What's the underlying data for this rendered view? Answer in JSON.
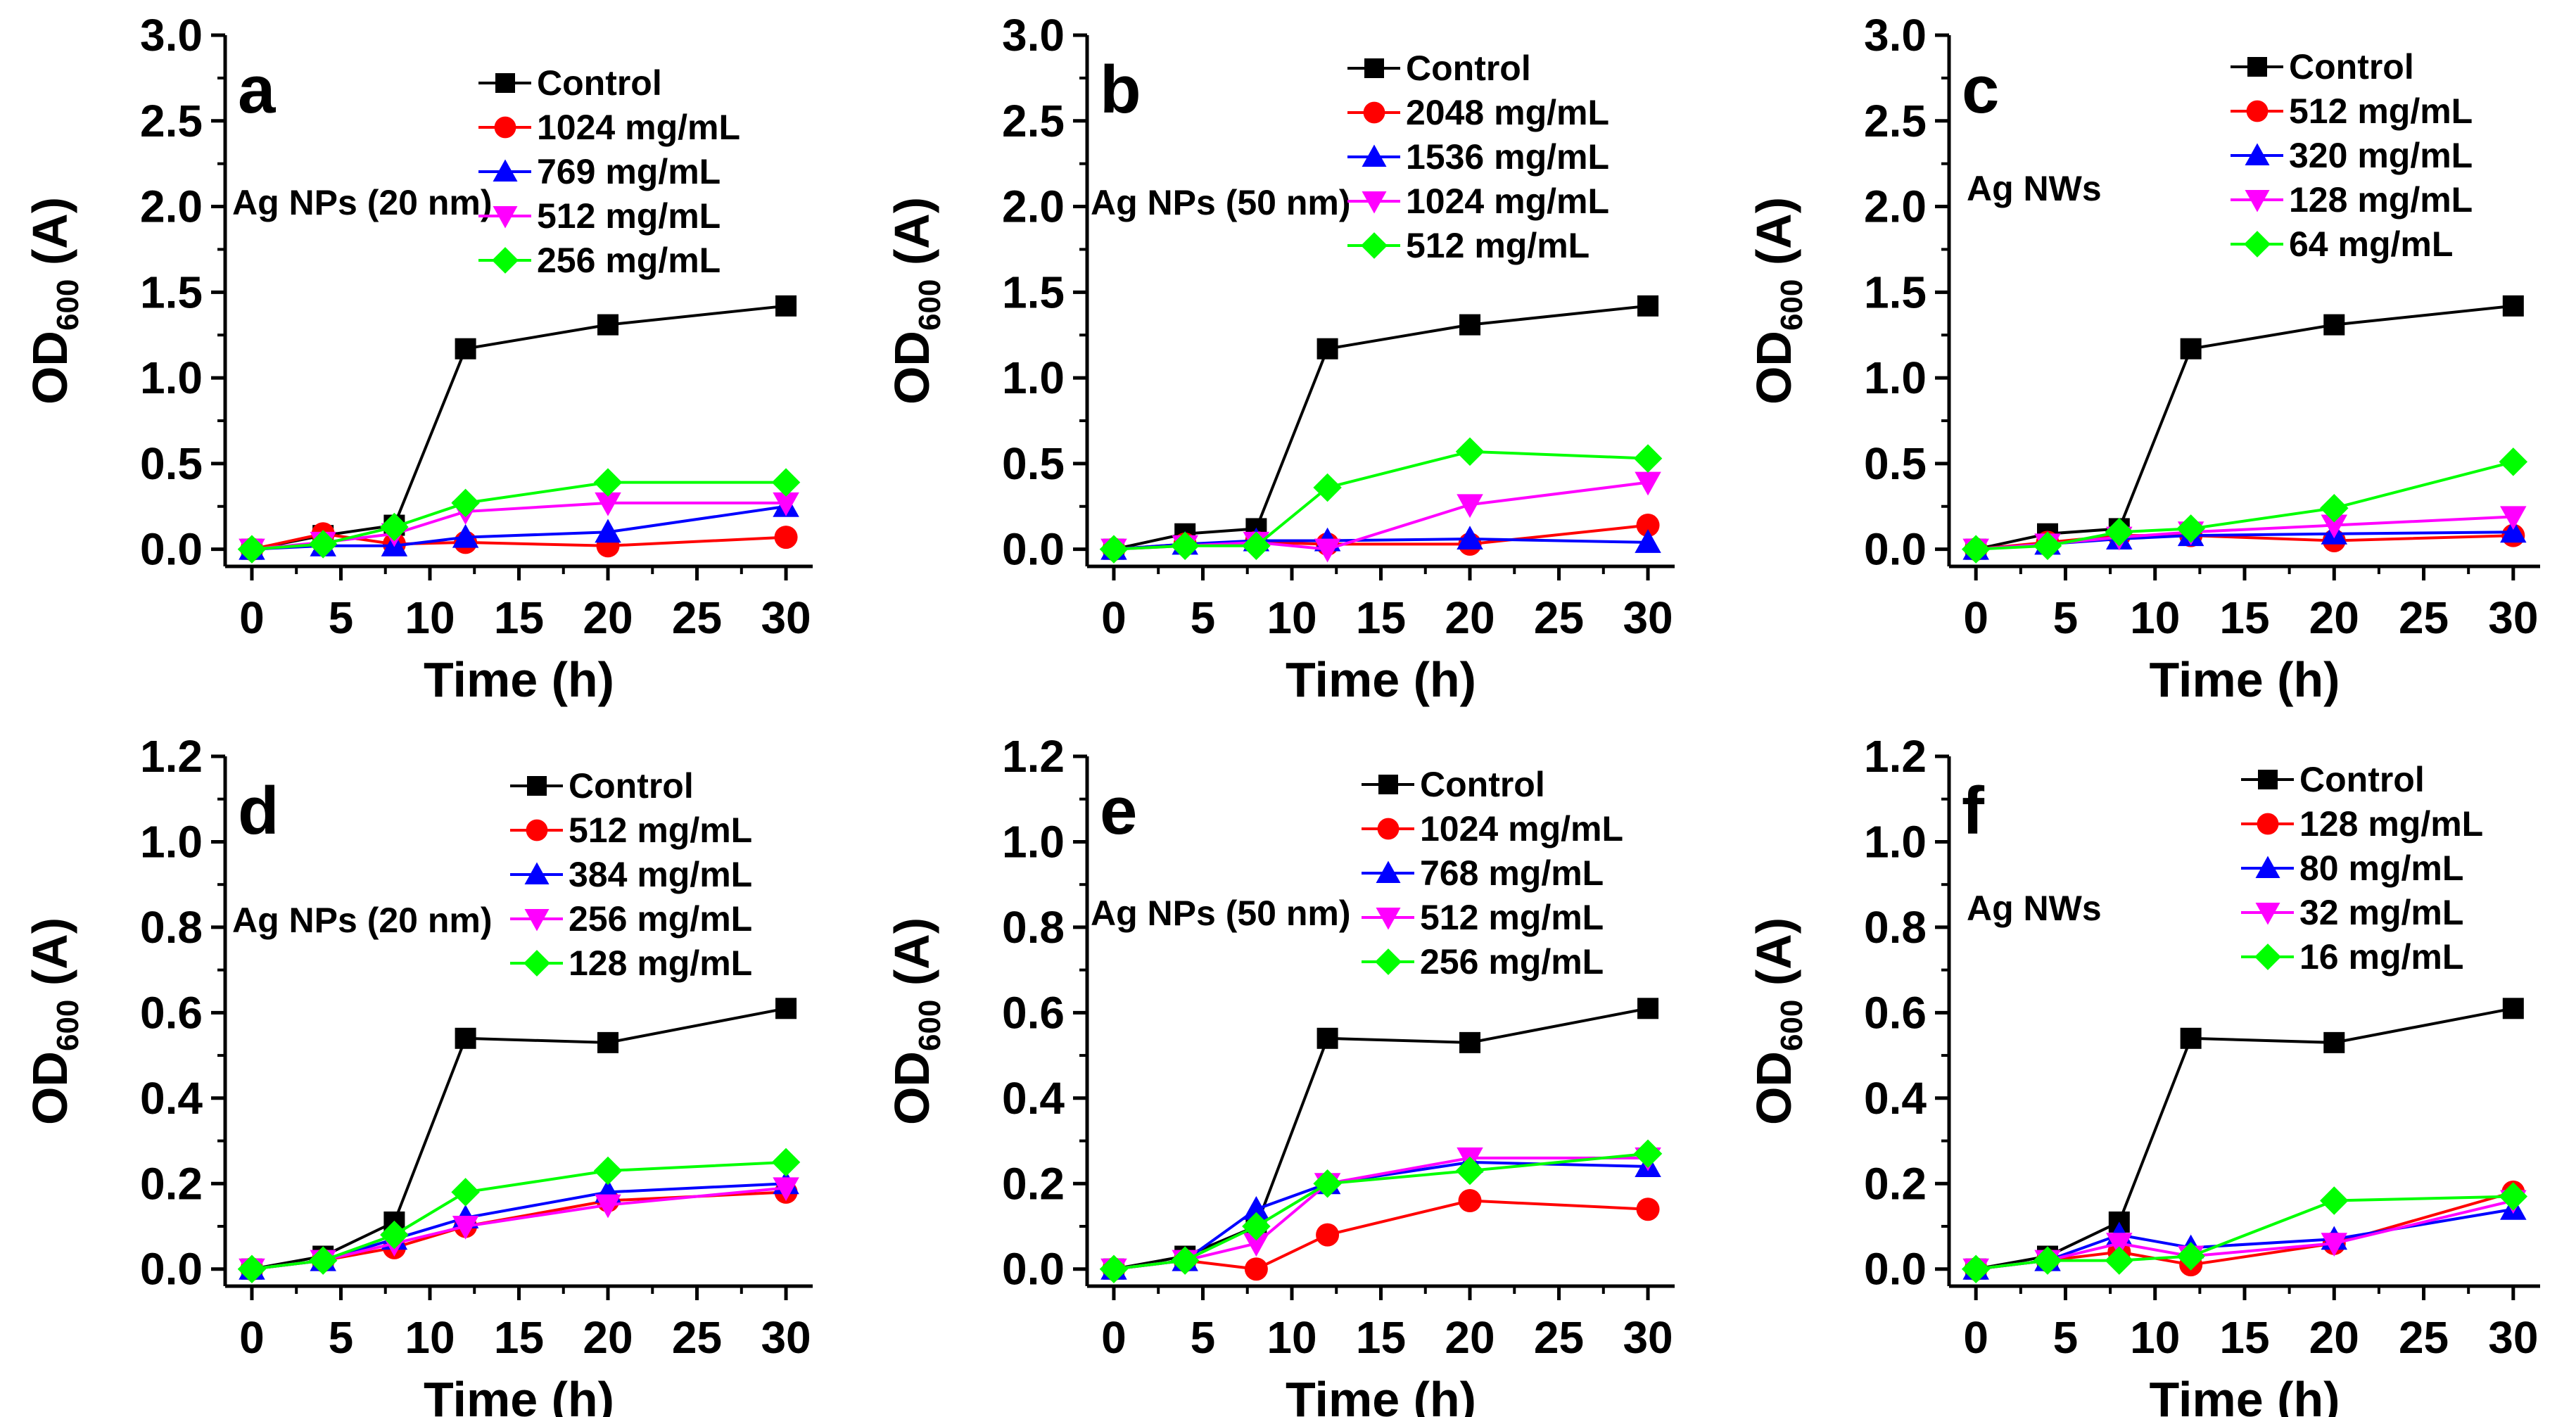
{
  "figure": {
    "description_shown": false
  },
  "chart_data": [
    {
      "type": "line",
      "panel_label": "a",
      "annotation": "Ag NPs (20 nm)",
      "xlabel": "Time (h)",
      "ylabel_main": "OD",
      "ylabel_sub": "600",
      "ylabel_suffix": " (A)",
      "xlim": [
        -1.5,
        31.5
      ],
      "ylim": [
        -0.1,
        3.0
      ],
      "x_ticks": [
        0,
        5,
        10,
        15,
        20,
        25,
        30
      ],
      "y_ticks": [
        0.0,
        0.5,
        1.0,
        1.5,
        2.0,
        2.5,
        3.0
      ],
      "y_tick_labels": [
        "0.0",
        "0.5",
        "1.0",
        "1.5",
        "2.0",
        "2.5",
        "3.0"
      ],
      "x": [
        0,
        4,
        8,
        12,
        20,
        30
      ],
      "legend_position": "top-right",
      "series": [
        {
          "name": "Control",
          "marker": "square",
          "color": "#000000",
          "values": [
            0.0,
            0.08,
            0.14,
            1.17,
            1.31,
            1.42
          ]
        },
        {
          "name": "1024 mg/mL",
          "marker": "circle",
          "color": "#ff0000",
          "values": [
            0.0,
            0.09,
            0.03,
            0.04,
            0.02,
            0.07
          ]
        },
        {
          "name": "769 mg/mL",
          "marker": "triangle-up",
          "color": "#0000ff",
          "values": [
            0.0,
            0.02,
            0.02,
            0.07,
            0.1,
            0.25
          ]
        },
        {
          "name": "512 mg/mL",
          "marker": "triangle-down",
          "color": "#ff00ff",
          "values": [
            0.0,
            0.04,
            0.09,
            0.22,
            0.27,
            0.27
          ]
        },
        {
          "name": "256 mg/mL",
          "marker": "diamond",
          "color": "#00ff00",
          "values": [
            0.0,
            0.03,
            0.13,
            0.27,
            0.39,
            0.39
          ]
        }
      ]
    },
    {
      "type": "line",
      "panel_label": "b",
      "annotation": "Ag NPs (50 nm)",
      "xlabel": "Time (h)",
      "ylabel_main": "OD",
      "ylabel_sub": "600",
      "ylabel_suffix": " (A)",
      "xlim": [
        -1.5,
        31.5
      ],
      "ylim": [
        -0.1,
        3.0
      ],
      "x_ticks": [
        0,
        5,
        10,
        15,
        20,
        25,
        30
      ],
      "y_ticks": [
        0.0,
        0.5,
        1.0,
        1.5,
        2.0,
        2.5,
        3.0
      ],
      "y_tick_labels": [
        "0.0",
        "0.5",
        "1.0",
        "1.5",
        "2.0",
        "2.5",
        "3.0"
      ],
      "x": [
        0,
        4,
        8,
        12,
        20,
        30
      ],
      "legend_position": "top-right",
      "series": [
        {
          "name": "Control",
          "marker": "square",
          "color": "#000000",
          "values": [
            0.0,
            0.09,
            0.12,
            1.17,
            1.31,
            1.42
          ]
        },
        {
          "name": "2048 mg/mL",
          "marker": "circle",
          "color": "#ff0000",
          "values": [
            0.0,
            0.03,
            0.04,
            0.03,
            0.03,
            0.14
          ]
        },
        {
          "name": "1536 mg/mL",
          "marker": "triangle-up",
          "color": "#0000ff",
          "values": [
            0.0,
            0.03,
            0.05,
            0.05,
            0.06,
            0.04
          ]
        },
        {
          "name": "1024 mg/mL",
          "marker": "triangle-down",
          "color": "#ff00ff",
          "values": [
            0.0,
            0.02,
            0.04,
            0.0,
            0.26,
            0.39
          ]
        },
        {
          "name": "512  mg/mL",
          "marker": "diamond",
          "color": "#00ff00",
          "values": [
            0.0,
            0.02,
            0.02,
            0.36,
            0.57,
            0.53
          ]
        }
      ]
    },
    {
      "type": "line",
      "panel_label": "c",
      "annotation": "Ag NWs",
      "xlabel": "Time (h)",
      "ylabel_main": "OD",
      "ylabel_sub": "600",
      "ylabel_suffix": " (A)",
      "xlim": [
        -1.5,
        31.5
      ],
      "ylim": [
        -0.1,
        3.0
      ],
      "x_ticks": [
        0,
        5,
        10,
        15,
        20,
        25,
        30
      ],
      "y_ticks": [
        0.0,
        0.5,
        1.0,
        1.5,
        2.0,
        2.5,
        3.0
      ],
      "y_tick_labels": [
        "0.0",
        "0.5",
        "1.0",
        "1.5",
        "2.0",
        "2.5",
        "3.0"
      ],
      "x": [
        0,
        4,
        8,
        12,
        20,
        30
      ],
      "legend_position": "top-right",
      "series": [
        {
          "name": "Control",
          "marker": "square",
          "color": "#000000",
          "values": [
            0.0,
            0.09,
            0.12,
            1.17,
            1.31,
            1.42
          ]
        },
        {
          "name": "512 mg/mL",
          "marker": "circle",
          "color": "#ff0000",
          "values": [
            0.0,
            0.04,
            0.08,
            0.08,
            0.05,
            0.08
          ]
        },
        {
          "name": "320 mg/mL",
          "marker": "triangle-up",
          "color": "#0000ff",
          "values": [
            0.0,
            0.03,
            0.06,
            0.08,
            0.09,
            0.1
          ]
        },
        {
          "name": "128 mg/mL",
          "marker": "triangle-down",
          "color": "#ff00ff",
          "values": [
            0.0,
            0.03,
            0.07,
            0.1,
            0.14,
            0.19
          ]
        },
        {
          "name": "64  mg/mL",
          "marker": "diamond",
          "color": "#00ff00",
          "values": [
            0.0,
            0.02,
            0.1,
            0.12,
            0.24,
            0.51
          ]
        }
      ]
    },
    {
      "type": "line",
      "panel_label": "d",
      "annotation": "Ag NPs (20 nm)",
      "xlabel": "Time (h)",
      "ylabel_main": "OD",
      "ylabel_sub": "600",
      "ylabel_suffix": " (A)",
      "xlim": [
        -1.5,
        31.5
      ],
      "ylim": [
        -0.04,
        1.2
      ],
      "x_ticks": [
        0,
        5,
        10,
        15,
        20,
        25,
        30
      ],
      "y_ticks": [
        0.0,
        0.2,
        0.4,
        0.6,
        0.8,
        1.0,
        1.2
      ],
      "y_tick_labels": [
        "0.0",
        "0.2",
        "0.4",
        "0.6",
        "0.8",
        "1.0",
        "1.2"
      ],
      "x": [
        0,
        4,
        8,
        12,
        20,
        30
      ],
      "legend_position": "top-right",
      "series": [
        {
          "name": "Control",
          "marker": "square",
          "color": "#000000",
          "values": [
            0.0,
            0.03,
            0.11,
            0.54,
            0.53,
            0.61
          ]
        },
        {
          "name": "512 mg/mL",
          "marker": "circle",
          "color": "#ff0000",
          "values": [
            0.0,
            0.02,
            0.05,
            0.1,
            0.16,
            0.18
          ]
        },
        {
          "name": "384 mg/mL",
          "marker": "triangle-up",
          "color": "#0000ff",
          "values": [
            0.0,
            0.02,
            0.07,
            0.12,
            0.18,
            0.2
          ]
        },
        {
          "name": "256 mg/mL",
          "marker": "triangle-down",
          "color": "#ff00ff",
          "values": [
            0.0,
            0.02,
            0.06,
            0.1,
            0.15,
            0.19
          ]
        },
        {
          "name": "128 mg/mL",
          "marker": "diamond",
          "color": "#00ff00",
          "values": [
            0.0,
            0.02,
            0.08,
            0.18,
            0.23,
            0.25
          ]
        }
      ]
    },
    {
      "type": "line",
      "panel_label": "e",
      "annotation": "Ag NPs (50 nm)",
      "xlabel": "Time (h)",
      "ylabel_main": "OD",
      "ylabel_sub": "600",
      "ylabel_suffix": " (A)",
      "xlim": [
        -1.5,
        31.5
      ],
      "ylim": [
        -0.04,
        1.2
      ],
      "x_ticks": [
        0,
        5,
        10,
        15,
        20,
        25,
        30
      ],
      "y_ticks": [
        0.0,
        0.2,
        0.4,
        0.6,
        0.8,
        1.0,
        1.2
      ],
      "y_tick_labels": [
        "0.0",
        "0.2",
        "0.4",
        "0.6",
        "0.8",
        "1.0",
        "1.2"
      ],
      "x": [
        0,
        4,
        8,
        12,
        20,
        30
      ],
      "legend_position": "top-right",
      "series": [
        {
          "name": "Control",
          "marker": "square",
          "color": "#000000",
          "values": [
            0.0,
            0.03,
            0.1,
            0.54,
            0.53,
            0.61
          ]
        },
        {
          "name": "1024 mg/mL",
          "marker": "circle",
          "color": "#ff0000",
          "values": [
            0.0,
            0.02,
            0.0,
            0.08,
            0.16,
            0.14
          ]
        },
        {
          "name": "768 mg/mL",
          "marker": "triangle-up",
          "color": "#0000ff",
          "values": [
            0.0,
            0.02,
            0.14,
            0.2,
            0.25,
            0.24
          ]
        },
        {
          "name": "512 mg/mL",
          "marker": "triangle-down",
          "color": "#ff00ff",
          "values": [
            0.0,
            0.02,
            0.06,
            0.2,
            0.26,
            0.26
          ]
        },
        {
          "name": "256 mg/mL",
          "marker": "diamond",
          "color": "#00ff00",
          "values": [
            0.0,
            0.02,
            0.1,
            0.2,
            0.23,
            0.27
          ]
        }
      ]
    },
    {
      "type": "line",
      "panel_label": "f",
      "annotation": "Ag NWs",
      "xlabel": "Time (h)",
      "ylabel_main": "OD",
      "ylabel_sub": "600",
      "ylabel_suffix": " (A)",
      "xlim": [
        -1.5,
        31.5
      ],
      "ylim": [
        -0.04,
        1.2
      ],
      "x_ticks": [
        0,
        5,
        10,
        15,
        20,
        25,
        30
      ],
      "y_ticks": [
        0.0,
        0.2,
        0.4,
        0.6,
        0.8,
        1.0,
        1.2
      ],
      "y_tick_labels": [
        "0.0",
        "0.2",
        "0.4",
        "0.6",
        "0.8",
        "1.0",
        "1.2"
      ],
      "x": [
        0,
        4,
        8,
        12,
        20,
        30
      ],
      "legend_position": "top-right",
      "series": [
        {
          "name": "Control",
          "marker": "square",
          "color": "#000000",
          "values": [
            0.0,
            0.03,
            0.11,
            0.54,
            0.53,
            0.61
          ]
        },
        {
          "name": "128 mg/mL",
          "marker": "circle",
          "color": "#ff0000",
          "values": [
            0.0,
            0.02,
            0.04,
            0.01,
            0.06,
            0.18
          ]
        },
        {
          "name": "80  mg/mL",
          "marker": "triangle-up",
          "color": "#0000ff",
          "values": [
            0.0,
            0.02,
            0.08,
            0.05,
            0.07,
            0.14
          ]
        },
        {
          "name": "32  mg/mL",
          "marker": "triangle-down",
          "color": "#ff00ff",
          "values": [
            0.0,
            0.02,
            0.06,
            0.03,
            0.06,
            0.16
          ]
        },
        {
          "name": "16  mg/mL",
          "marker": "diamond",
          "color": "#00ff00",
          "values": [
            0.0,
            0.02,
            0.02,
            0.03,
            0.16,
            0.17
          ]
        }
      ]
    }
  ]
}
